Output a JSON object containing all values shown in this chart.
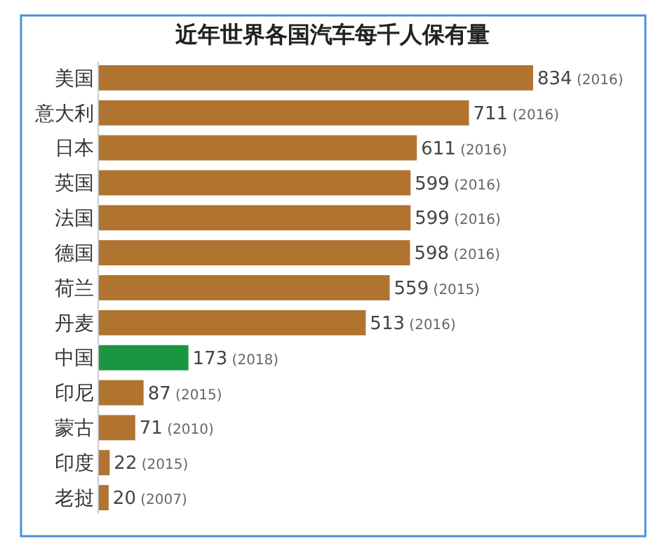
{
  "chart_data": {
    "type": "bar",
    "orientation": "horizontal",
    "title": "近年世界各国汽车每千人保有量",
    "categories": [
      "美国",
      "意大利",
      "日本",
      "英国",
      "法国",
      "德国",
      "荷兰",
      "丹麦",
      "中国",
      "印尼",
      "蒙古",
      "印度",
      "老挝"
    ],
    "values": [
      834,
      711,
      611,
      599,
      599,
      598,
      559,
      513,
      173,
      87,
      71,
      22,
      20
    ],
    "colors": [
      "#b07330",
      "#b07330",
      "#b07330",
      "#b07330",
      "#b07330",
      "#b07330",
      "#b07330",
      "#b07330",
      "#1a9641",
      "#b07330",
      "#b07330",
      "#b07330",
      "#b07330"
    ],
    "value_labels": [
      "834 (2016)",
      "711 (2016)",
      "611 (2016)",
      "599 (2016)",
      "599 (2016)",
      "598 (2016)",
      "559 (2015)",
      "513 (2016)",
      "173 (2018)",
      "87 (2015)",
      "71 (2010)",
      "22 (2015)",
      "20 (2007)"
    ]
  }
}
